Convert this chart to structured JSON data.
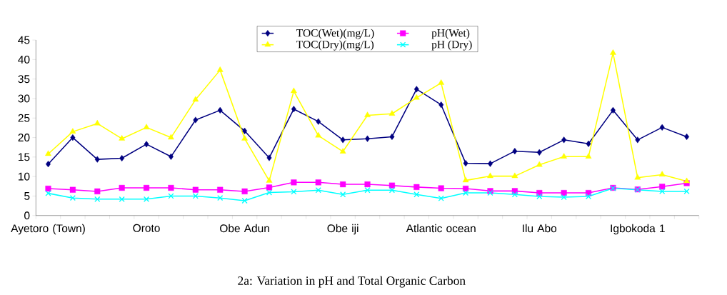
{
  "chart_data": {
    "type": "line",
    "title": "2a: Variation in pH and Total Organic Carbon",
    "categories": [
      "Ayetoro (Town)",
      null,
      null,
      null,
      "Oroto",
      null,
      null,
      null,
      "Obe Adun",
      null,
      null,
      null,
      "Obe iji",
      null,
      null,
      null,
      "Atlantic ocean",
      null,
      null,
      null,
      "Ilu Abo",
      null,
      null,
      null,
      "Igbokoda 1",
      null,
      null
    ],
    "series": [
      {
        "name": "TOC(Wet)(mg/L)",
        "color": "#000080",
        "marker": "diamond",
        "values": [
          13.2,
          20.0,
          14.4,
          14.7,
          18.3,
          15.1,
          24.5,
          27.0,
          21.7,
          14.8,
          27.3,
          24.1,
          19.4,
          19.7,
          20.2,
          32.4,
          28.4,
          13.4,
          13.3,
          16.5,
          16.2,
          19.4,
          18.4,
          27.0,
          19.4,
          22.6,
          20.2
        ]
      },
      {
        "name": "pH(Wet)",
        "color": "#ff00ff",
        "marker": "square",
        "values": [
          6.9,
          6.6,
          6.2,
          7.1,
          7.1,
          7.1,
          6.6,
          6.6,
          6.2,
          7.2,
          8.5,
          8.5,
          8.0,
          8.0,
          7.7,
          7.3,
          7.0,
          6.9,
          6.3,
          6.3,
          5.8,
          5.8,
          5.8,
          7.1,
          6.7,
          7.4,
          8.3
        ]
      },
      {
        "name": "TOC(Dry)(mg/L)",
        "color": "#ffff00",
        "marker": "triangle",
        "values": [
          15.8,
          21.5,
          23.6,
          19.7,
          22.6,
          20.0,
          29.7,
          37.3,
          19.7,
          8.9,
          31.9,
          20.5,
          16.4,
          25.7,
          26.1,
          30.2,
          34.0,
          9.0,
          10.1,
          10.1,
          13.0,
          15.1,
          15.1,
          41.7,
          9.7,
          10.5,
          8.8
        ]
      },
      {
        "name": "pH (Dry)",
        "color": "#00ffff",
        "marker": "cross",
        "values": [
          5.7,
          4.5,
          4.2,
          4.2,
          4.2,
          5.0,
          5.0,
          4.5,
          3.8,
          5.9,
          6.1,
          6.5,
          5.4,
          6.5,
          6.5,
          5.4,
          4.4,
          5.8,
          5.8,
          5.4,
          4.9,
          4.7,
          4.9,
          7.0,
          6.6,
          6.2,
          6.2
        ]
      }
    ],
    "ylim": [
      0,
      45
    ],
    "yticks": [
      0,
      5,
      10,
      15,
      20,
      25,
      30,
      35,
      40,
      45
    ],
    "grid": false,
    "legend": "top",
    "line_style": "solid"
  }
}
